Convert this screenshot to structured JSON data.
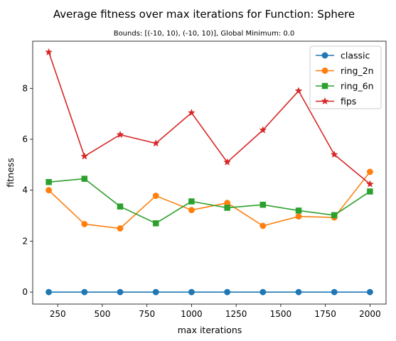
{
  "chart_data": {
    "type": "line",
    "title": "Average fitness over max iterations for Function: Sphere",
    "subtitle": "Bounds: [(-10, 10), (-10, 10)], Global Minimum: 0.0",
    "xlabel": "max iterations",
    "ylabel": "fitness",
    "xlim": [
      110,
      2090
    ],
    "ylim": [
      -0.47,
      9.85
    ],
    "x_ticks": [
      250,
      500,
      750,
      1000,
      1250,
      1500,
      1750,
      2000
    ],
    "y_ticks": [
      0,
      2,
      4,
      6,
      8
    ],
    "grid": false,
    "legend_position": "top-right",
    "x": [
      200,
      400,
      600,
      800,
      1000,
      1200,
      1400,
      1600,
      1800,
      2000
    ],
    "series": [
      {
        "name": "classic",
        "color": "#1f77b4",
        "marker": "circle",
        "values": [
          0,
          0,
          0,
          0,
          0,
          0,
          0,
          0,
          0,
          0
        ]
      },
      {
        "name": "ring_2n",
        "color": "#ff7f0e",
        "marker": "circle",
        "values": [
          4.0,
          2.67,
          2.5,
          3.78,
          3.22,
          3.5,
          2.6,
          2.97,
          2.93,
          4.72
        ]
      },
      {
        "name": "ring_6n",
        "color": "#2ca02c",
        "marker": "square",
        "values": [
          4.32,
          4.45,
          3.36,
          2.7,
          3.56,
          3.31,
          3.43,
          3.2,
          3.02,
          3.95
        ]
      },
      {
        "name": "fips",
        "color": "#d62728",
        "marker": "star",
        "values": [
          9.42,
          5.33,
          6.18,
          5.84,
          7.04,
          5.1,
          6.36,
          7.9,
          5.4,
          4.24
        ]
      }
    ]
  }
}
